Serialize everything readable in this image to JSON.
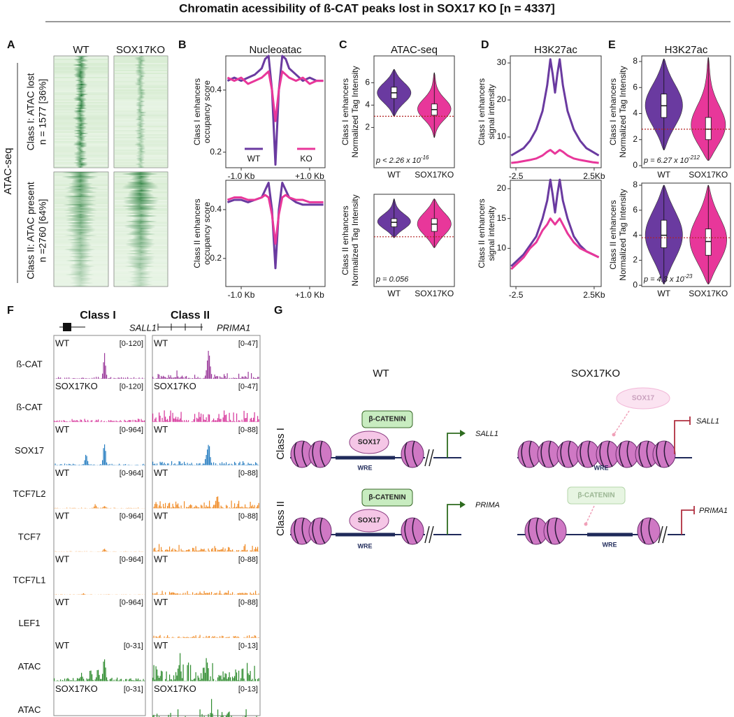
{
  "title": "Chromatin acessibility of ß-CAT peaks lost in SOX17 KO [n = 4337]",
  "panel_a": {
    "label": "A",
    "columns": [
      "WT",
      "SOX17KO"
    ],
    "assay": "ATAC-seq",
    "rows": [
      {
        "name": "Class I: ATAC lost",
        "n": "n = 1577 [36%]"
      },
      {
        "name": "Class II: ATAC present",
        "n": "n =2760 [64%]"
      }
    ]
  },
  "panel_b": {
    "label": "B",
    "type": "line",
    "title": "Nucleoatac",
    "series_names": [
      "WT",
      "KO"
    ],
    "colors": [
      "#6a3aa0",
      "#e8379a"
    ],
    "x": [
      -1.4,
      -1.2,
      -1.0,
      -0.8,
      -0.6,
      -0.4,
      -0.3,
      -0.2,
      -0.1,
      0,
      0.1,
      0.2,
      0.3,
      0.4,
      0.6,
      0.8,
      1.0,
      1.2,
      1.4
    ],
    "xlim": [
      -1.45,
      1.45
    ],
    "xticks": [
      {
        "value": -1,
        "label": "-1.0 Kb"
      },
      {
        "value": 1,
        "label": "+1.0 Kb"
      }
    ],
    "plots": [
      {
        "ylabel": [
          "Class I enhancers",
          "occupancy score"
        ],
        "ylim": [
          0.15,
          0.51
        ],
        "yticks": [
          0.2,
          0.4
        ],
        "values": [
          [
            0.43,
            0.44,
            0.43,
            0.44,
            0.45,
            0.47,
            0.5,
            0.51,
            0.4,
            0.16,
            0.4,
            0.51,
            0.5,
            0.47,
            0.45,
            0.43,
            0.44,
            0.43,
            0.43
          ],
          [
            0.44,
            0.43,
            0.44,
            0.42,
            0.43,
            0.44,
            0.45,
            0.46,
            0.4,
            0.3,
            0.4,
            0.46,
            0.45,
            0.44,
            0.43,
            0.44,
            0.42,
            0.43,
            0.43
          ]
        ]
      },
      {
        "ylabel": [
          "Class II enhancers",
          "occupancy score"
        ],
        "ylim": [
          0.085,
          0.52
        ],
        "yticks": [
          0.2,
          0.4
        ],
        "values": [
          [
            0.43,
            0.44,
            0.44,
            0.43,
            0.44,
            0.45,
            0.48,
            0.51,
            0.4,
            0.16,
            0.4,
            0.51,
            0.48,
            0.45,
            0.43,
            0.42,
            0.42,
            0.42,
            0.42
          ],
          [
            0.44,
            0.45,
            0.45,
            0.44,
            0.44,
            0.45,
            0.46,
            0.45,
            0.38,
            0.26,
            0.38,
            0.45,
            0.46,
            0.45,
            0.44,
            0.44,
            0.43,
            0.43,
            0.43
          ]
        ]
      }
    ]
  },
  "panel_c": {
    "label": "C",
    "type": "violin",
    "title": "ATAC-seq",
    "categories": [
      "WT",
      "SOX17KO"
    ],
    "colors": [
      "#6a3aa0",
      "#e8379a"
    ],
    "plots": [
      {
        "ylabel": [
          "Class I enhancers",
          "Normalized Tag Intensity"
        ],
        "ylim": [
          -1.6,
          8.4
        ],
        "yticks": [
          2,
          4,
          6
        ],
        "threshold": 3,
        "stats": [
          {
            "median": 5.1,
            "q1": 4.6,
            "q3": 5.6,
            "min": 3.0,
            "max": 7.2
          },
          {
            "median": 3.6,
            "q1": 3.1,
            "q3": 4.1,
            "min": 1.1,
            "max": 6.9
          }
        ],
        "p": {
          "text": "p < 2.26 x 10",
          "exponent": "-16"
        }
      },
      {
        "ylabel": [
          "Class II enhancers",
          "Normalized Tag Intensity"
        ],
        "ylim": [
          -2.5,
          7.7
        ],
        "threshold": 3,
        "stats": [
          {
            "median": 4.6,
            "q1": 4.1,
            "q3": 5.0,
            "min": 2.9,
            "max": 7.2
          },
          {
            "median": 4.4,
            "q1": 3.6,
            "q3": 5.0,
            "min": 1.8,
            "max": 7.2
          }
        ],
        "p": {
          "text": "p = 0.056"
        }
      }
    ]
  },
  "panel_d": {
    "label": "D",
    "type": "line",
    "title": "H3K27ac",
    "colors": [
      "#6a3aa0",
      "#e8379a"
    ],
    "x": [
      -2.8,
      -2.4,
      -2.0,
      -1.6,
      -1.2,
      -0.8,
      -0.5,
      -0.3,
      -0.15,
      0,
      0.15,
      0.3,
      0.5,
      0.8,
      1.2,
      1.6,
      2.0,
      2.4,
      2.8
    ],
    "xlim": [
      -2.86,
      2.95
    ],
    "xticks": [
      -2.5,
      {
        "value": 2.5,
        "label": "2.5Kb"
      }
    ],
    "plots": [
      {
        "ylabel": [
          "Class I enhancers",
          "signal intensity"
        ],
        "ylim": [
          1.7,
          31.9
        ],
        "yticks": [
          10,
          20,
          30
        ],
        "values": [
          [
            5,
            6,
            7,
            9,
            12,
            17,
            24,
            31,
            27,
            22,
            27,
            31,
            24,
            17,
            12,
            9,
            7,
            6,
            5
          ],
          [
            3,
            3.2,
            3.5,
            3.8,
            4.2,
            5,
            6,
            6.5,
            6,
            5.5,
            6,
            6.5,
            6,
            5,
            4.2,
            3.8,
            3.5,
            3.2,
            3
          ]
        ]
      },
      {
        "ylabel": [
          "Class II enhancers",
          "signal intensity"
        ],
        "ylim": [
          3.6,
          21.4
        ],
        "yticks": [
          10,
          15,
          20
        ],
        "values": [
          [
            7,
            8,
            9,
            10.5,
            12,
            15,
            18,
            21.5,
            19,
            16,
            19,
            21.5,
            18,
            15,
            12,
            10.5,
            9.5,
            9,
            8.5
          ],
          [
            6.5,
            7.5,
            8.5,
            10,
            11,
            13,
            14,
            15,
            14.5,
            14,
            14.5,
            15,
            14,
            12.5,
            11,
            10,
            9.5,
            9,
            8.5
          ]
        ]
      }
    ]
  },
  "panel_e": {
    "label": "E",
    "type": "violin",
    "title": "H3K27ac",
    "categories": [
      "WT",
      "SOX17KO"
    ],
    "colors": [
      "#6a3aa0",
      "#e8379a"
    ],
    "plots": [
      {
        "ylabel": [
          "Class I enhancers",
          "Normalized Tag Intensity"
        ],
        "ylim": [
          -0.16,
          8.43
        ],
        "yticks": [
          0,
          2,
          4,
          6,
          8
        ],
        "threshold": 2.8,
        "stats": [
          {
            "median": 4.6,
            "q1": 3.7,
            "q3": 5.5,
            "min": 1.2,
            "max": 8.2
          },
          {
            "median": 2.8,
            "q1": 2.0,
            "q3": 3.7,
            "min": 0.4,
            "max": 8.3
          }
        ],
        "p": {
          "text": "p = 6.27 x 10",
          "exponent": "-212"
        }
      },
      {
        "ylabel": [
          "Class II enhancers",
          "Normalized Tag Intensity"
        ],
        "ylim": [
          -0.1,
          8.17
        ],
        "yticks": [
          0,
          2,
          4,
          6,
          8
        ],
        "threshold": 3.8,
        "stats": [
          {
            "median": 4.0,
            "q1": 3.0,
            "q3": 5.2,
            "min": 0.1,
            "max": 8.0
          },
          {
            "median": 3.5,
            "q1": 2.4,
            "q3": 4.5,
            "min": 0.1,
            "max": 8.0
          }
        ],
        "p": {
          "text": "p = 4.3 x 10",
          "exponent": "-23"
        }
      }
    ]
  },
  "panel_f": {
    "label": "F",
    "tracks": [
      "ß-CAT",
      "ß-CAT",
      "SOX17",
      "TCF7L2",
      "TCF7",
      "TCF7L1",
      "LEF1",
      "ATAC",
      "ATAC"
    ],
    "columns": [
      {
        "title": "Class I",
        "gene": "SALL1",
        "samples": [
          "WT",
          "SOX17KO",
          "WT",
          "WT",
          "WT",
          "WT",
          "WT",
          "WT",
          "SOX17KO"
        ],
        "ranges": [
          "[0-120]",
          "[0-120]",
          "[0-964]",
          "[0-964]",
          "[0-964]",
          "[0-964]",
          "[0-964]",
          "[0-31]",
          "[0-31]"
        ]
      },
      {
        "title": "Class II",
        "gene": "PRIMA1",
        "samples": [
          "WT",
          "SOX17KO",
          "WT",
          "WT",
          "WT",
          "WT",
          "WT",
          "WT",
          "SOX17KO"
        ],
        "ranges": [
          "[0-47]",
          "[0-47]",
          "[0-88]",
          "[0-88]",
          "[0-88]",
          "[0-88]",
          "[0-88]",
          "[0-13]",
          "[0-13]"
        ]
      }
    ]
  },
  "panel_g": {
    "label": "G",
    "columns": [
      "WT",
      "SOX17KO"
    ],
    "rows": [
      "Class I",
      "Class II"
    ],
    "cells": [
      [
        {
          "proteins": [
            "β-CATENIN",
            "SOX17"
          ],
          "site": "WRE",
          "gene": "SALL1"
        },
        {
          "proteins": [
            "SOX17"
          ],
          "site": "WRE",
          "gene": "SALL1"
        }
      ],
      [
        {
          "proteins": [
            "β-CATENIN",
            "SOX17"
          ],
          "site": "WRE",
          "gene": "PRIMA"
        },
        {
          "proteins": [
            "β-CATENIN"
          ],
          "site": "WRE",
          "gene": "PRIMA1"
        }
      ]
    ]
  }
}
